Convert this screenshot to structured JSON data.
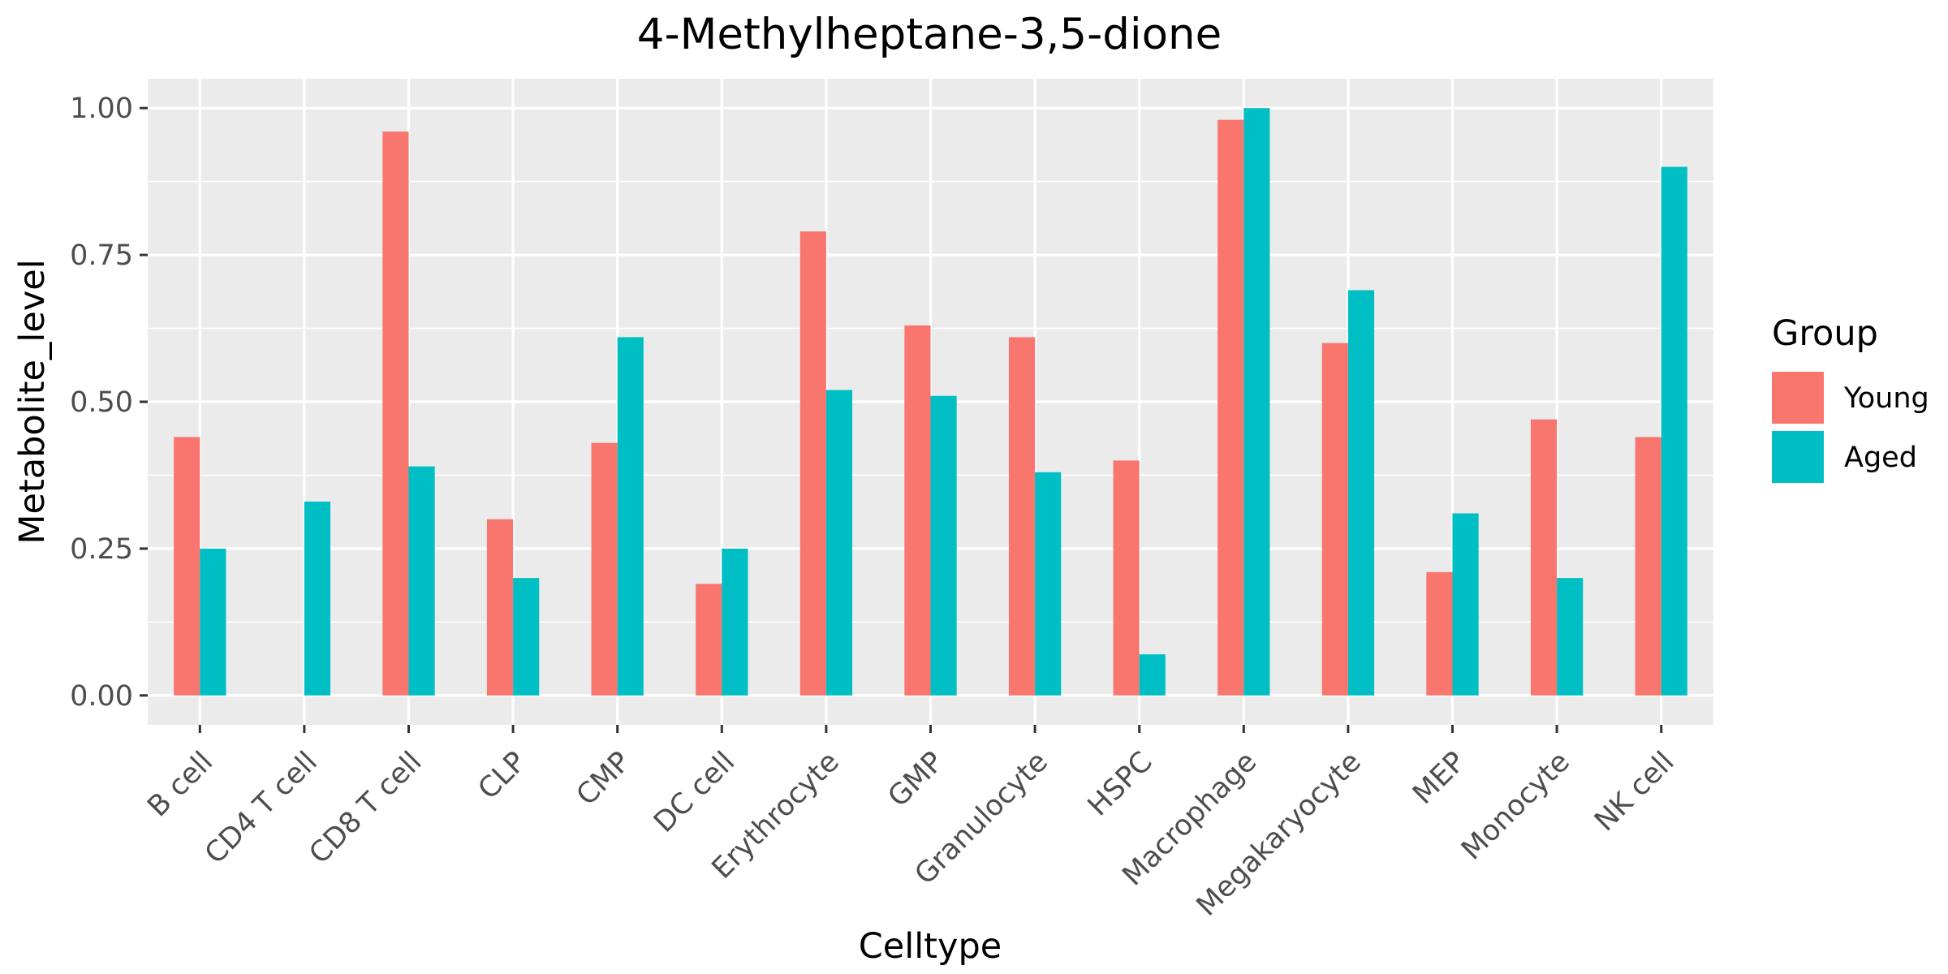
{
  "chart_data": {
    "type": "bar",
    "title": "4-Methylheptane-3,5-dione",
    "xlabel": "Celltype",
    "ylabel": "Metabolite_level",
    "ylim": [
      -0.05,
      1.05
    ],
    "yticks": [
      0,
      0.25,
      0.5,
      0.75,
      1.0
    ],
    "ytick_labels": [
      "0.00",
      "0.25",
      "0.50",
      "0.75",
      "1.00"
    ],
    "grid": true,
    "legend": {
      "title": "Group",
      "position": "right"
    },
    "categories": [
      "B cell",
      "CD4 T cell",
      "CD8 T cell",
      "CLP",
      "CMP",
      "DC cell",
      "Erythrocyte",
      "GMP",
      "Granulocyte",
      "HSPC",
      "Macrophage",
      "Megakaryocyte",
      "MEP",
      "Monocyte",
      "NK cell"
    ],
    "series": [
      {
        "name": "Young",
        "color": "#F8766D",
        "values": [
          0.44,
          0.0,
          0.96,
          0.3,
          0.43,
          0.19,
          0.79,
          0.63,
          0.61,
          0.4,
          0.98,
          0.6,
          0.21,
          0.47,
          0.44
        ]
      },
      {
        "name": "Aged",
        "color": "#00BFC4",
        "values": [
          0.25,
          0.33,
          0.39,
          0.2,
          0.61,
          0.25,
          0.52,
          0.51,
          0.38,
          0.07,
          1.0,
          0.69,
          0.31,
          0.2,
          0.9
        ]
      }
    ]
  }
}
